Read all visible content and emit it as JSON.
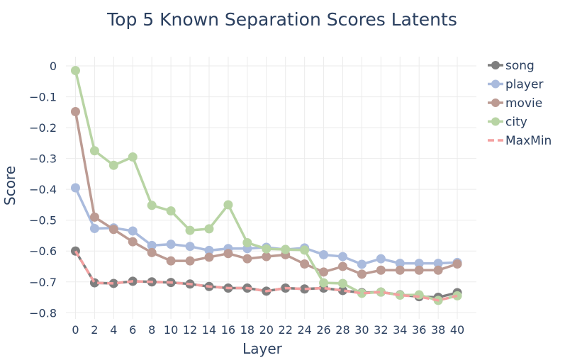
{
  "chart_data": {
    "type": "line",
    "title": "Top 5 Known Separation Scores Latents",
    "xlabel": "Layer",
    "ylabel": "Score",
    "xlim": [
      -1,
      42
    ],
    "ylim": [
      -0.82,
      0.03
    ],
    "x_ticks": [
      0,
      2,
      4,
      6,
      8,
      10,
      12,
      14,
      16,
      18,
      20,
      22,
      24,
      26,
      28,
      30,
      32,
      34,
      36,
      38,
      40
    ],
    "y_ticks": [
      0,
      -0.1,
      -0.2,
      -0.3,
      -0.4,
      -0.5,
      -0.6,
      -0.7,
      -0.8
    ],
    "y_tick_labels": [
      "0",
      "−0.1",
      "−0.2",
      "−0.3",
      "−0.4",
      "−0.5",
      "−0.6",
      "−0.7",
      "−0.8"
    ],
    "grid": true,
    "legend_position": "top-right",
    "x": [
      0,
      2,
      4,
      6,
      8,
      10,
      12,
      14,
      16,
      18,
      20,
      22,
      24,
      26,
      28,
      30,
      32,
      34,
      36,
      38,
      40
    ],
    "series": [
      {
        "name": "song",
        "color": "#7f7f7f",
        "style": "line-markers",
        "values": [
          -0.6,
          -0.703,
          -0.705,
          -0.698,
          -0.7,
          -0.702,
          -0.707,
          -0.715,
          -0.72,
          -0.72,
          -0.73,
          -0.72,
          -0.723,
          -0.72,
          -0.728,
          -0.735,
          -0.733,
          -0.742,
          -0.748,
          -0.75,
          -0.735
        ]
      },
      {
        "name": "player",
        "color": "#aabbdd",
        "style": "line-markers",
        "values": [
          -0.395,
          -0.527,
          -0.525,
          -0.535,
          -0.582,
          -0.578,
          -0.585,
          -0.598,
          -0.592,
          -0.592,
          -0.588,
          -0.595,
          -0.59,
          -0.612,
          -0.618,
          -0.643,
          -0.625,
          -0.64,
          -0.64,
          -0.64,
          -0.637
        ]
      },
      {
        "name": "movie",
        "color": "#bc9b93",
        "style": "line-markers",
        "values": [
          -0.148,
          -0.49,
          -0.53,
          -0.57,
          -0.605,
          -0.632,
          -0.632,
          -0.62,
          -0.608,
          -0.625,
          -0.618,
          -0.612,
          -0.642,
          -0.668,
          -0.65,
          -0.675,
          -0.662,
          -0.662,
          -0.662,
          -0.662,
          -0.642
        ]
      },
      {
        "name": "city",
        "color": "#b8d4a4",
        "style": "line-markers",
        "values": [
          -0.015,
          -0.275,
          -0.322,
          -0.295,
          -0.452,
          -0.47,
          -0.533,
          -0.528,
          -0.45,
          -0.573,
          -0.593,
          -0.595,
          -0.597,
          -0.703,
          -0.705,
          -0.737,
          -0.733,
          -0.743,
          -0.742,
          -0.76,
          -0.745
        ]
      },
      {
        "name": "MaxMin",
        "color": "#f4a0a0",
        "style": "dashed",
        "values": [
          -0.6,
          -0.703,
          -0.705,
          -0.698,
          -0.7,
          -0.702,
          -0.707,
          -0.715,
          -0.72,
          -0.72,
          -0.73,
          -0.72,
          -0.723,
          -0.72,
          -0.728,
          -0.737,
          -0.733,
          -0.743,
          -0.748,
          -0.76,
          -0.745
        ]
      }
    ]
  }
}
